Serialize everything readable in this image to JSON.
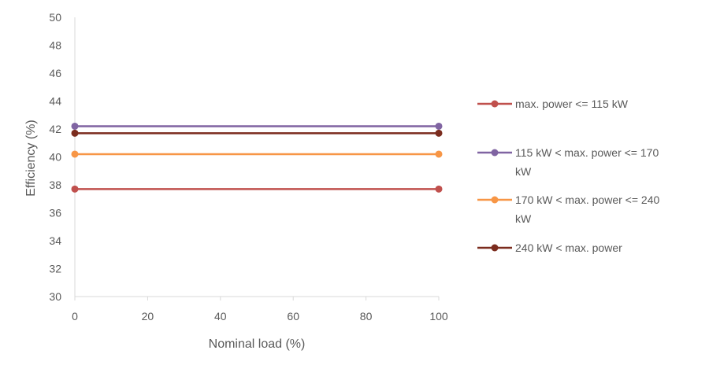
{
  "chart_data": {
    "type": "line",
    "title": "",
    "xlabel": "Nominal load (%)",
    "ylabel": "Efficiency (%)",
    "xlim": [
      0,
      100
    ],
    "ylim": [
      30,
      50
    ],
    "x_ticks": [
      0,
      20,
      40,
      60,
      80,
      100
    ],
    "y_ticks": [
      30,
      32,
      34,
      36,
      38,
      40,
      42,
      44,
      46,
      48,
      50
    ],
    "grid": false,
    "legend_position": "right",
    "series": [
      {
        "name": "max. power <= 115 kW",
        "legend_lines": [
          "max. power <= 115 kW"
        ],
        "color": "#C0504D",
        "x": [
          0,
          100
        ],
        "y": [
          37.7,
          37.7
        ]
      },
      {
        "name": "115 kW < max. power <= 170 kW",
        "legend_lines": [
          "115 kW < max. power <= 170",
          "kW"
        ],
        "color": "#8064A2",
        "x": [
          0,
          100
        ],
        "y": [
          42.2,
          42.2
        ]
      },
      {
        "name": "170 kW < max. power <= 240 kW",
        "legend_lines": [
          "170 kW < max. power <= 240",
          "kW"
        ],
        "color": "#F79646",
        "x": [
          0,
          100
        ],
        "y": [
          40.2,
          40.2
        ]
      },
      {
        "name": "240 kW < max. power",
        "legend_lines": [
          "240 kW < max. power"
        ],
        "color": "#7B2C1E",
        "x": [
          0,
          100
        ],
        "y": [
          41.7,
          41.7
        ]
      }
    ]
  }
}
